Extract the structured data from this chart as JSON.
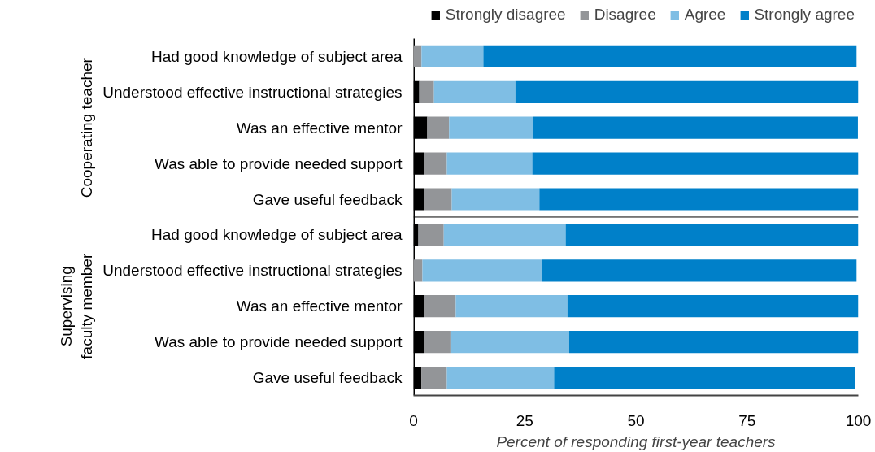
{
  "chart_data": {
    "type": "bar",
    "orientation": "horizontal",
    "stacked": true,
    "xlabel": "Percent of responding first-year teachers",
    "categories": [
      "Had good knowledge of subject area",
      "Understood effective instructional strategies",
      "Was an effective mentor",
      "Was able to provide needed support",
      "Gave useful feedback",
      "Had good knowledge of subject area",
      "Understood effective instructional strategies",
      "Was an effective mentor",
      "Was able to provide needed support",
      "Gave useful feedback"
    ],
    "series": [
      {
        "name": "Strongly disagree",
        "color": "#000000",
        "values": [
          0,
          1.3,
          3.1,
          2.4,
          2.4,
          1.1,
          0,
          2.4,
          2.4,
          1.8
        ]
      },
      {
        "name": "Disagree",
        "color": "#939598",
        "values": [
          1.8,
          3.3,
          4.9,
          5.1,
          6.2,
          5.7,
          2.0,
          7.1,
          5.9,
          5.7
        ]
      },
      {
        "name": "Agree",
        "color": "#7fbee4",
        "values": [
          13.9,
          18.3,
          18.8,
          19.2,
          19.7,
          27.4,
          26.9,
          25.1,
          26.7,
          24.1
        ]
      },
      {
        "name": "Strongly agree",
        "color": "#0080c9",
        "values": [
          83.9,
          77.1,
          73.1,
          73.3,
          71.7,
          65.8,
          70.7,
          65.4,
          65.1,
          67.6
        ]
      }
    ],
    "annotations": [
      "Cooperating teacher",
      "Supervising\nfaculty member"
    ],
    "xlim": [
      0,
      100
    ],
    "xticks": [
      0,
      25,
      50,
      75,
      100
    ],
    "grid": false,
    "legend": "top right"
  }
}
